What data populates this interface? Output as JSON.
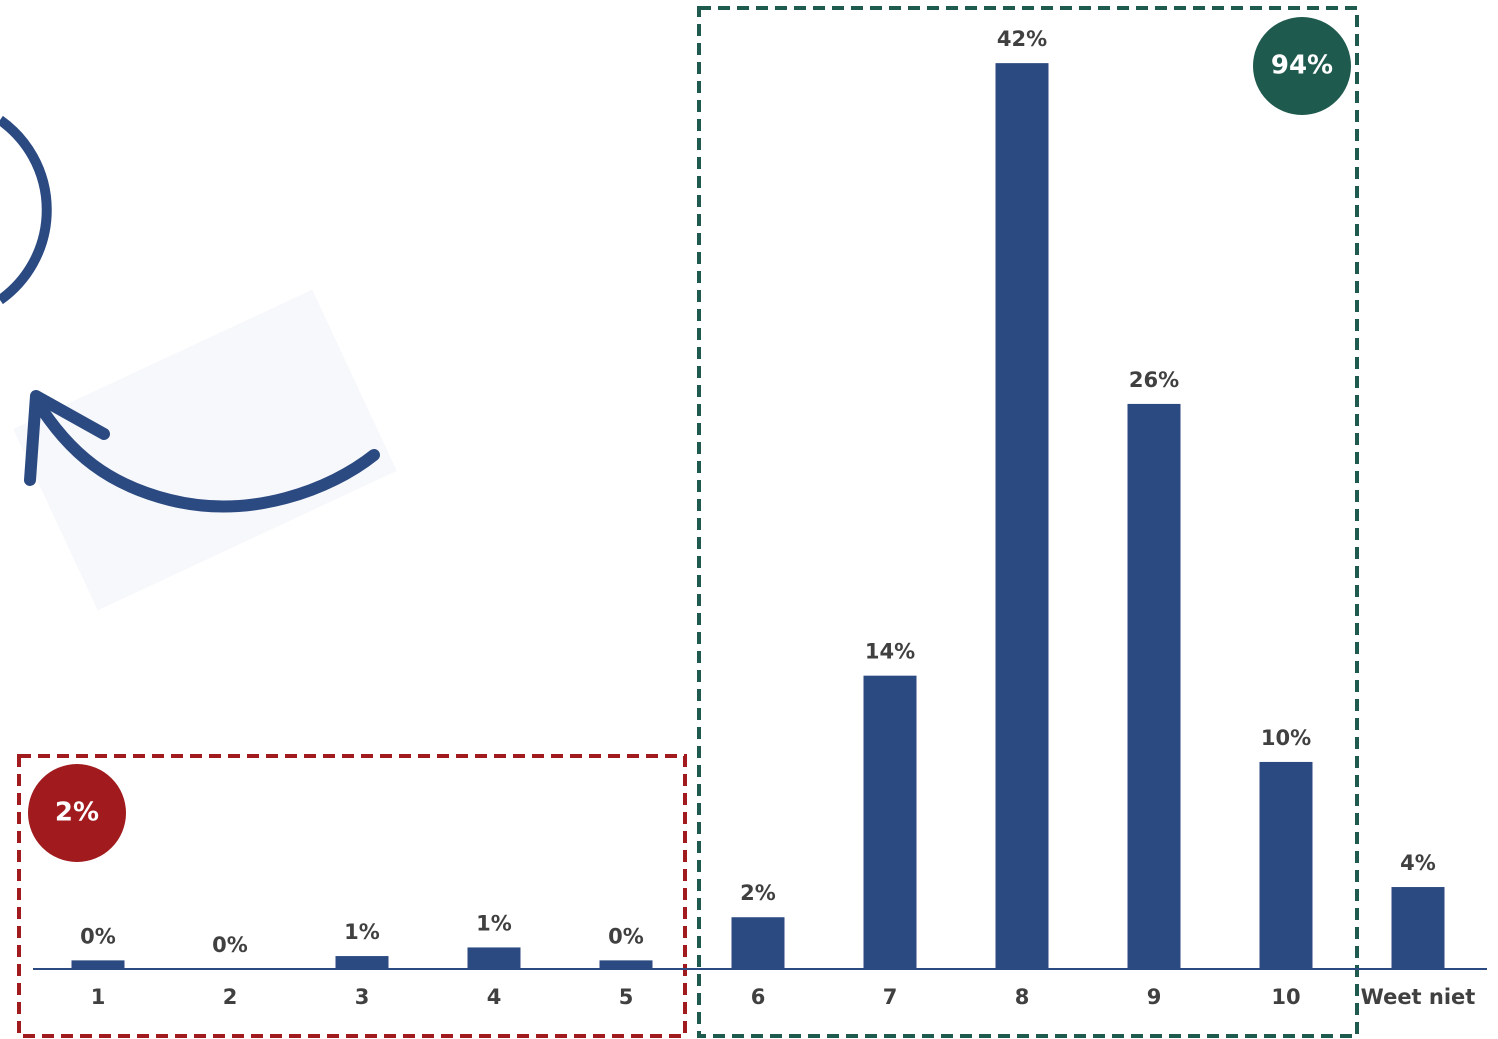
{
  "chart_data": {
    "type": "bar",
    "categories": [
      "1",
      "2",
      "3",
      "4",
      "5",
      "6",
      "7",
      "8",
      "9",
      "10",
      "Weet niet"
    ],
    "values": [
      0.4,
      0,
      0.6,
      1.0,
      0.4,
      2.4,
      13.6,
      42.0,
      26.2,
      9.6,
      3.8
    ],
    "value_labels": [
      "0%",
      "0%",
      "1%",
      "1%",
      "0%",
      "2%",
      "14%",
      "42%",
      "26%",
      "10%",
      "4%"
    ],
    "color": "#2c4a82",
    "ylim": [
      0,
      44
    ],
    "annotations": [
      "2%",
      "94%"
    ]
  }
}
